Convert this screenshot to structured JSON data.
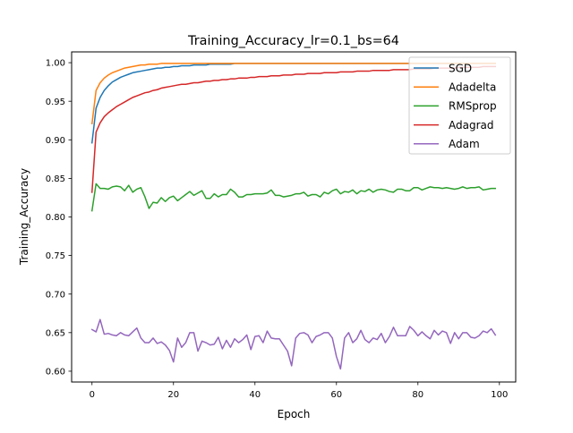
{
  "chart_data": {
    "type": "line",
    "title": "Training_Accuracy_lr=0.1_bs=64",
    "xlabel": "Epoch",
    "ylabel": "Training_Accuracy",
    "xlim": [
      -5,
      104
    ],
    "ylim": [
      0.586,
      1.014
    ],
    "x_ticks": [
      0,
      20,
      40,
      60,
      80,
      100
    ],
    "y_ticks": [
      0.6,
      0.65,
      0.7,
      0.75,
      0.8,
      0.85,
      0.9,
      0.95,
      1.0
    ],
    "x_tick_labels": [
      "0",
      "20",
      "40",
      "60",
      "80",
      "100"
    ],
    "y_tick_labels": [
      "0.60",
      "0.65",
      "0.70",
      "0.75",
      "0.80",
      "0.85",
      "0.90",
      "0.95",
      "1.00"
    ],
    "grid": false,
    "legend_position": "top-right",
    "x": [
      0,
      1,
      2,
      3,
      4,
      5,
      6,
      7,
      8,
      9,
      10,
      11,
      12,
      13,
      14,
      15,
      16,
      17,
      18,
      19,
      20,
      21,
      22,
      23,
      24,
      25,
      26,
      27,
      28,
      29,
      30,
      31,
      32,
      33,
      34,
      35,
      36,
      37,
      38,
      39,
      40,
      41,
      42,
      43,
      44,
      45,
      46,
      47,
      48,
      49,
      50,
      51,
      52,
      53,
      54,
      55,
      56,
      57,
      58,
      59,
      60,
      61,
      62,
      63,
      64,
      65,
      66,
      67,
      68,
      69,
      70,
      71,
      72,
      73,
      74,
      75,
      76,
      77,
      78,
      79,
      80,
      81,
      82,
      83,
      84,
      85,
      86,
      87,
      88,
      89,
      90,
      91,
      92,
      93,
      94,
      95,
      96,
      97,
      98,
      99
    ],
    "series": [
      {
        "name": "SGD",
        "color": "#1f77b4",
        "values": [
          0.896,
          0.941,
          0.955,
          0.964,
          0.97,
          0.975,
          0.978,
          0.981,
          0.983,
          0.985,
          0.987,
          0.988,
          0.989,
          0.99,
          0.991,
          0.992,
          0.993,
          0.993,
          0.994,
          0.994,
          0.995,
          0.995,
          0.996,
          0.996,
          0.996,
          0.997,
          0.997,
          0.997,
          0.997,
          0.998,
          0.998,
          0.998,
          0.998,
          0.998,
          0.998,
          0.999,
          0.999,
          0.999,
          0.999,
          0.999,
          0.999,
          0.999,
          0.999,
          0.999,
          0.999,
          0.999,
          0.999,
          0.999,
          0.999,
          0.999,
          0.999,
          0.999,
          0.999,
          0.999,
          0.999,
          0.999,
          0.999,
          0.999,
          0.999,
          0.999,
          0.999,
          0.999,
          0.999,
          0.999,
          0.999,
          0.999,
          0.999,
          0.999,
          0.999,
          0.999,
          0.999,
          0.999,
          0.999,
          0.999,
          0.999,
          0.999,
          0.999,
          0.999,
          0.999,
          0.999,
          0.999,
          0.999,
          0.999,
          0.999,
          0.999,
          0.999,
          0.999,
          0.999,
          0.999,
          0.999,
          0.999,
          0.999,
          0.999,
          0.999,
          0.999,
          0.999,
          0.999,
          0.999,
          0.999,
          0.999
        ]
      },
      {
        "name": "Adadelta",
        "color": "#ff7f0e",
        "values": [
          0.921,
          0.964,
          0.974,
          0.98,
          0.984,
          0.987,
          0.989,
          0.991,
          0.993,
          0.994,
          0.995,
          0.996,
          0.997,
          0.997,
          0.998,
          0.998,
          0.998,
          0.999,
          0.999,
          0.999,
          0.999,
          0.999,
          0.999,
          0.999,
          0.999,
          0.999,
          0.999,
          0.999,
          0.999,
          0.999,
          0.999,
          0.999,
          0.999,
          0.999,
          0.999,
          0.999,
          0.999,
          0.999,
          0.999,
          0.999,
          0.999,
          0.999,
          0.999,
          0.999,
          0.999,
          0.999,
          0.999,
          0.999,
          0.999,
          0.999,
          0.999,
          0.999,
          0.999,
          0.999,
          0.999,
          0.999,
          0.999,
          0.999,
          0.999,
          0.999,
          0.999,
          0.999,
          0.999,
          0.999,
          0.999,
          0.999,
          0.999,
          0.999,
          0.999,
          0.999,
          0.999,
          0.999,
          0.999,
          0.999,
          0.999,
          0.999,
          0.999,
          0.999,
          0.999,
          0.999,
          0.999,
          0.999,
          0.999,
          0.999,
          0.999,
          0.999,
          0.999,
          0.999,
          0.999,
          0.999,
          0.999,
          0.999,
          0.999,
          0.999,
          0.999,
          0.999,
          0.999,
          0.999,
          0.999,
          0.999
        ]
      },
      {
        "name": "RMSprop",
        "color": "#2ca02c",
        "values": [
          0.808,
          0.843,
          0.837,
          0.837,
          0.836,
          0.839,
          0.84,
          0.839,
          0.834,
          0.841,
          0.832,
          0.836,
          0.838,
          0.826,
          0.811,
          0.819,
          0.818,
          0.825,
          0.82,
          0.825,
          0.827,
          0.821,
          0.825,
          0.829,
          0.833,
          0.828,
          0.831,
          0.834,
          0.824,
          0.824,
          0.83,
          0.826,
          0.829,
          0.829,
          0.836,
          0.832,
          0.826,
          0.826,
          0.829,
          0.829,
          0.83,
          0.83,
          0.83,
          0.831,
          0.835,
          0.828,
          0.828,
          0.826,
          0.827,
          0.828,
          0.83,
          0.83,
          0.832,
          0.827,
          0.829,
          0.829,
          0.826,
          0.832,
          0.83,
          0.834,
          0.836,
          0.83,
          0.833,
          0.832,
          0.835,
          0.83,
          0.834,
          0.833,
          0.836,
          0.832,
          0.835,
          0.836,
          0.835,
          0.833,
          0.832,
          0.836,
          0.836,
          0.834,
          0.834,
          0.838,
          0.838,
          0.835,
          0.837,
          0.839,
          0.838,
          0.838,
          0.837,
          0.838,
          0.837,
          0.836,
          0.837,
          0.839,
          0.837,
          0.838,
          0.838,
          0.839,
          0.835,
          0.836,
          0.837,
          0.837
        ]
      },
      {
        "name": "Adagrad",
        "color": "#d62728",
        "values": [
          0.832,
          0.91,
          0.922,
          0.93,
          0.935,
          0.939,
          0.943,
          0.946,
          0.949,
          0.952,
          0.955,
          0.957,
          0.959,
          0.961,
          0.962,
          0.964,
          0.965,
          0.967,
          0.968,
          0.969,
          0.97,
          0.971,
          0.972,
          0.972,
          0.973,
          0.974,
          0.974,
          0.975,
          0.976,
          0.976,
          0.977,
          0.977,
          0.978,
          0.978,
          0.979,
          0.979,
          0.98,
          0.98,
          0.98,
          0.981,
          0.981,
          0.982,
          0.982,
          0.982,
          0.983,
          0.983,
          0.983,
          0.984,
          0.984,
          0.984,
          0.985,
          0.985,
          0.985,
          0.986,
          0.986,
          0.986,
          0.986,
          0.987,
          0.987,
          0.987,
          0.987,
          0.988,
          0.988,
          0.988,
          0.988,
          0.989,
          0.989,
          0.989,
          0.989,
          0.99,
          0.99,
          0.99,
          0.99,
          0.99,
          0.991,
          0.991,
          0.991,
          0.991,
          0.991,
          0.992,
          0.992,
          0.992,
          0.992,
          0.992,
          0.993,
          0.993,
          0.993,
          0.993,
          0.993,
          0.993,
          0.994,
          0.994,
          0.994,
          0.994,
          0.994,
          0.994,
          0.995,
          0.995,
          0.995,
          0.995
        ]
      },
      {
        "name": "Adam",
        "color": "#9467bd",
        "values": [
          0.654,
          0.651,
          0.667,
          0.648,
          0.649,
          0.647,
          0.646,
          0.65,
          0.647,
          0.646,
          0.651,
          0.656,
          0.643,
          0.637,
          0.637,
          0.643,
          0.636,
          0.638,
          0.634,
          0.627,
          0.612,
          0.643,
          0.631,
          0.637,
          0.65,
          0.65,
          0.626,
          0.639,
          0.637,
          0.634,
          0.635,
          0.644,
          0.629,
          0.64,
          0.631,
          0.642,
          0.637,
          0.641,
          0.647,
          0.628,
          0.645,
          0.646,
          0.637,
          0.652,
          0.643,
          0.642,
          0.642,
          0.634,
          0.626,
          0.607,
          0.643,
          0.649,
          0.65,
          0.647,
          0.637,
          0.645,
          0.647,
          0.65,
          0.65,
          0.643,
          0.619,
          0.603,
          0.643,
          0.65,
          0.637,
          0.642,
          0.653,
          0.641,
          0.637,
          0.643,
          0.641,
          0.649,
          0.637,
          0.645,
          0.657,
          0.646,
          0.646,
          0.646,
          0.658,
          0.653,
          0.646,
          0.651,
          0.646,
          0.642,
          0.653,
          0.647,
          0.652,
          0.65,
          0.636,
          0.65,
          0.642,
          0.65,
          0.65,
          0.644,
          0.643,
          0.646,
          0.652,
          0.65,
          0.655,
          0.647
        ]
      }
    ]
  }
}
